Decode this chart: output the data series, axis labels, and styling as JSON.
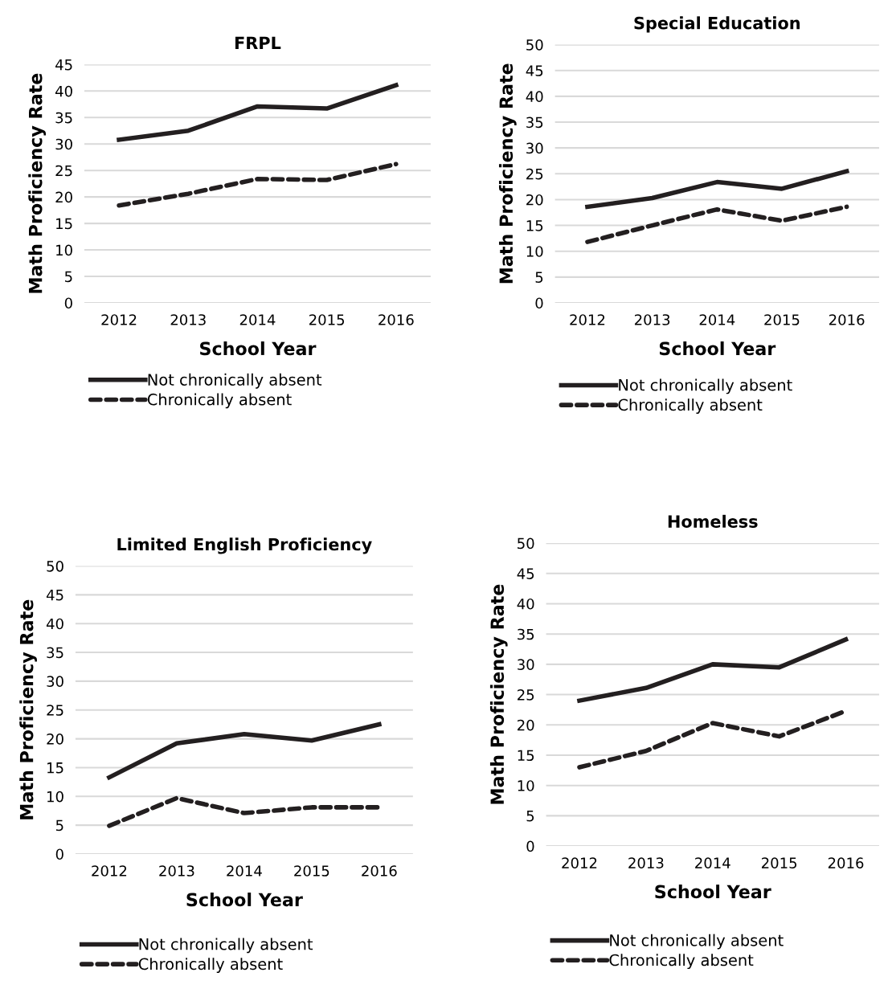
{
  "chart_data": [
    {
      "type": "line",
      "title": "FRPL",
      "xlabel": "School Year",
      "ylabel": "Math Proficiency Rate",
      "categories": [
        "2012",
        "2013",
        "2014",
        "2015",
        "2016"
      ],
      "ylim": [
        0,
        45
      ],
      "yticks": [
        0,
        5,
        10,
        15,
        20,
        25,
        30,
        35,
        40,
        45
      ],
      "grid": "y",
      "legend": "bottom",
      "series": [
        {
          "name": "Not chronically absent",
          "color": "#231f20",
          "line_style": "solid",
          "values": [
            30.8,
            32.5,
            37.1,
            36.7,
            41.1
          ]
        },
        {
          "name": "Chronically absent",
          "color": "#231f20",
          "line_style": "dashed",
          "values": [
            18.4,
            20.6,
            23.4,
            23.2,
            26.2
          ]
        }
      ]
    },
    {
      "type": "line",
      "title": "Special Education",
      "xlabel": "School Year",
      "ylabel": "Math Proficiency Rate",
      "categories": [
        "2012",
        "2013",
        "2014",
        "2015",
        "2016"
      ],
      "ylim": [
        0,
        50
      ],
      "yticks": [
        0,
        5,
        10,
        15,
        20,
        25,
        30,
        35,
        40,
        45,
        50
      ],
      "grid": "y",
      "legend": "bottom",
      "series": [
        {
          "name": "Not chronically absent",
          "color": "#231f20",
          "line_style": "solid",
          "values": [
            18.6,
            20.3,
            23.4,
            22.1,
            25.5
          ]
        },
        {
          "name": "Chronically absent",
          "color": "#231f20",
          "line_style": "dashed",
          "values": [
            11.8,
            15.0,
            18.1,
            15.9,
            18.6
          ]
        }
      ]
    },
    {
      "type": "line",
      "title": "Limited English Proficiency",
      "xlabel": "School Year",
      "ylabel": "Math Proficiency Rate",
      "categories": [
        "2012",
        "2013",
        "2014",
        "2015",
        "2016"
      ],
      "ylim": [
        0,
        50
      ],
      "yticks": [
        0,
        5,
        10,
        15,
        20,
        25,
        30,
        35,
        40,
        45,
        50
      ],
      "grid": "y",
      "legend": "bottom",
      "series": [
        {
          "name": "Not chronically absent",
          "color": "#231f20",
          "line_style": "solid",
          "values": [
            13.3,
            19.2,
            20.8,
            19.7,
            22.5
          ]
        },
        {
          "name": "Chronically absent",
          "color": "#231f20",
          "line_style": "dashed",
          "values": [
            4.9,
            9.7,
            7.1,
            8.1,
            8.1
          ]
        }
      ]
    },
    {
      "type": "line",
      "title": "Homeless",
      "xlabel": "School Year",
      "ylabel": "Math Proficiency Rate",
      "categories": [
        "2012",
        "2013",
        "2014",
        "2015",
        "2016"
      ],
      "ylim": [
        0,
        50
      ],
      "yticks": [
        0,
        5,
        10,
        15,
        20,
        25,
        30,
        35,
        40,
        45,
        50
      ],
      "grid": "y",
      "legend": "bottom",
      "series": [
        {
          "name": "Not chronically absent",
          "color": "#231f20",
          "line_style": "solid",
          "values": [
            24.0,
            26.1,
            30.0,
            29.5,
            34.1
          ]
        },
        {
          "name": "Chronically absent",
          "color": "#231f20",
          "line_style": "dashed",
          "values": [
            13.0,
            15.7,
            20.3,
            18.1,
            22.3
          ]
        }
      ]
    }
  ]
}
